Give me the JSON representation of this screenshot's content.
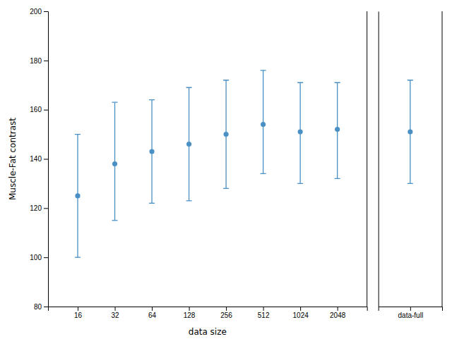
{
  "chart_data": [
    {
      "type": "errorbar",
      "categories": [
        "16",
        "32",
        "64",
        "128",
        "256",
        "512",
        "1024",
        "2048"
      ],
      "values": [
        125,
        138,
        143,
        146,
        150,
        154,
        151,
        152
      ],
      "error_lower": [
        25,
        23,
        21,
        23,
        22,
        20,
        21,
        20
      ],
      "error_upper": [
        25,
        25,
        21,
        23,
        22,
        22,
        20,
        19
      ],
      "xlabel": "data size",
      "ylabel": "Muscle-Fat contrast",
      "ylim": [
        80,
        200
      ],
      "yticks": [
        80,
        100,
        120,
        140,
        160,
        180,
        200
      ],
      "color": "#4A90C4",
      "marker": "o",
      "grid": false
    },
    {
      "type": "errorbar",
      "categories": [
        "data-full"
      ],
      "values": [
        151
      ],
      "error_lower": [
        21
      ],
      "error_upper": [
        21
      ],
      "ylim": [
        80,
        200
      ],
      "color": "#4A90C4",
      "marker": "o",
      "grid": false,
      "tick_labels": "x"
    }
  ]
}
